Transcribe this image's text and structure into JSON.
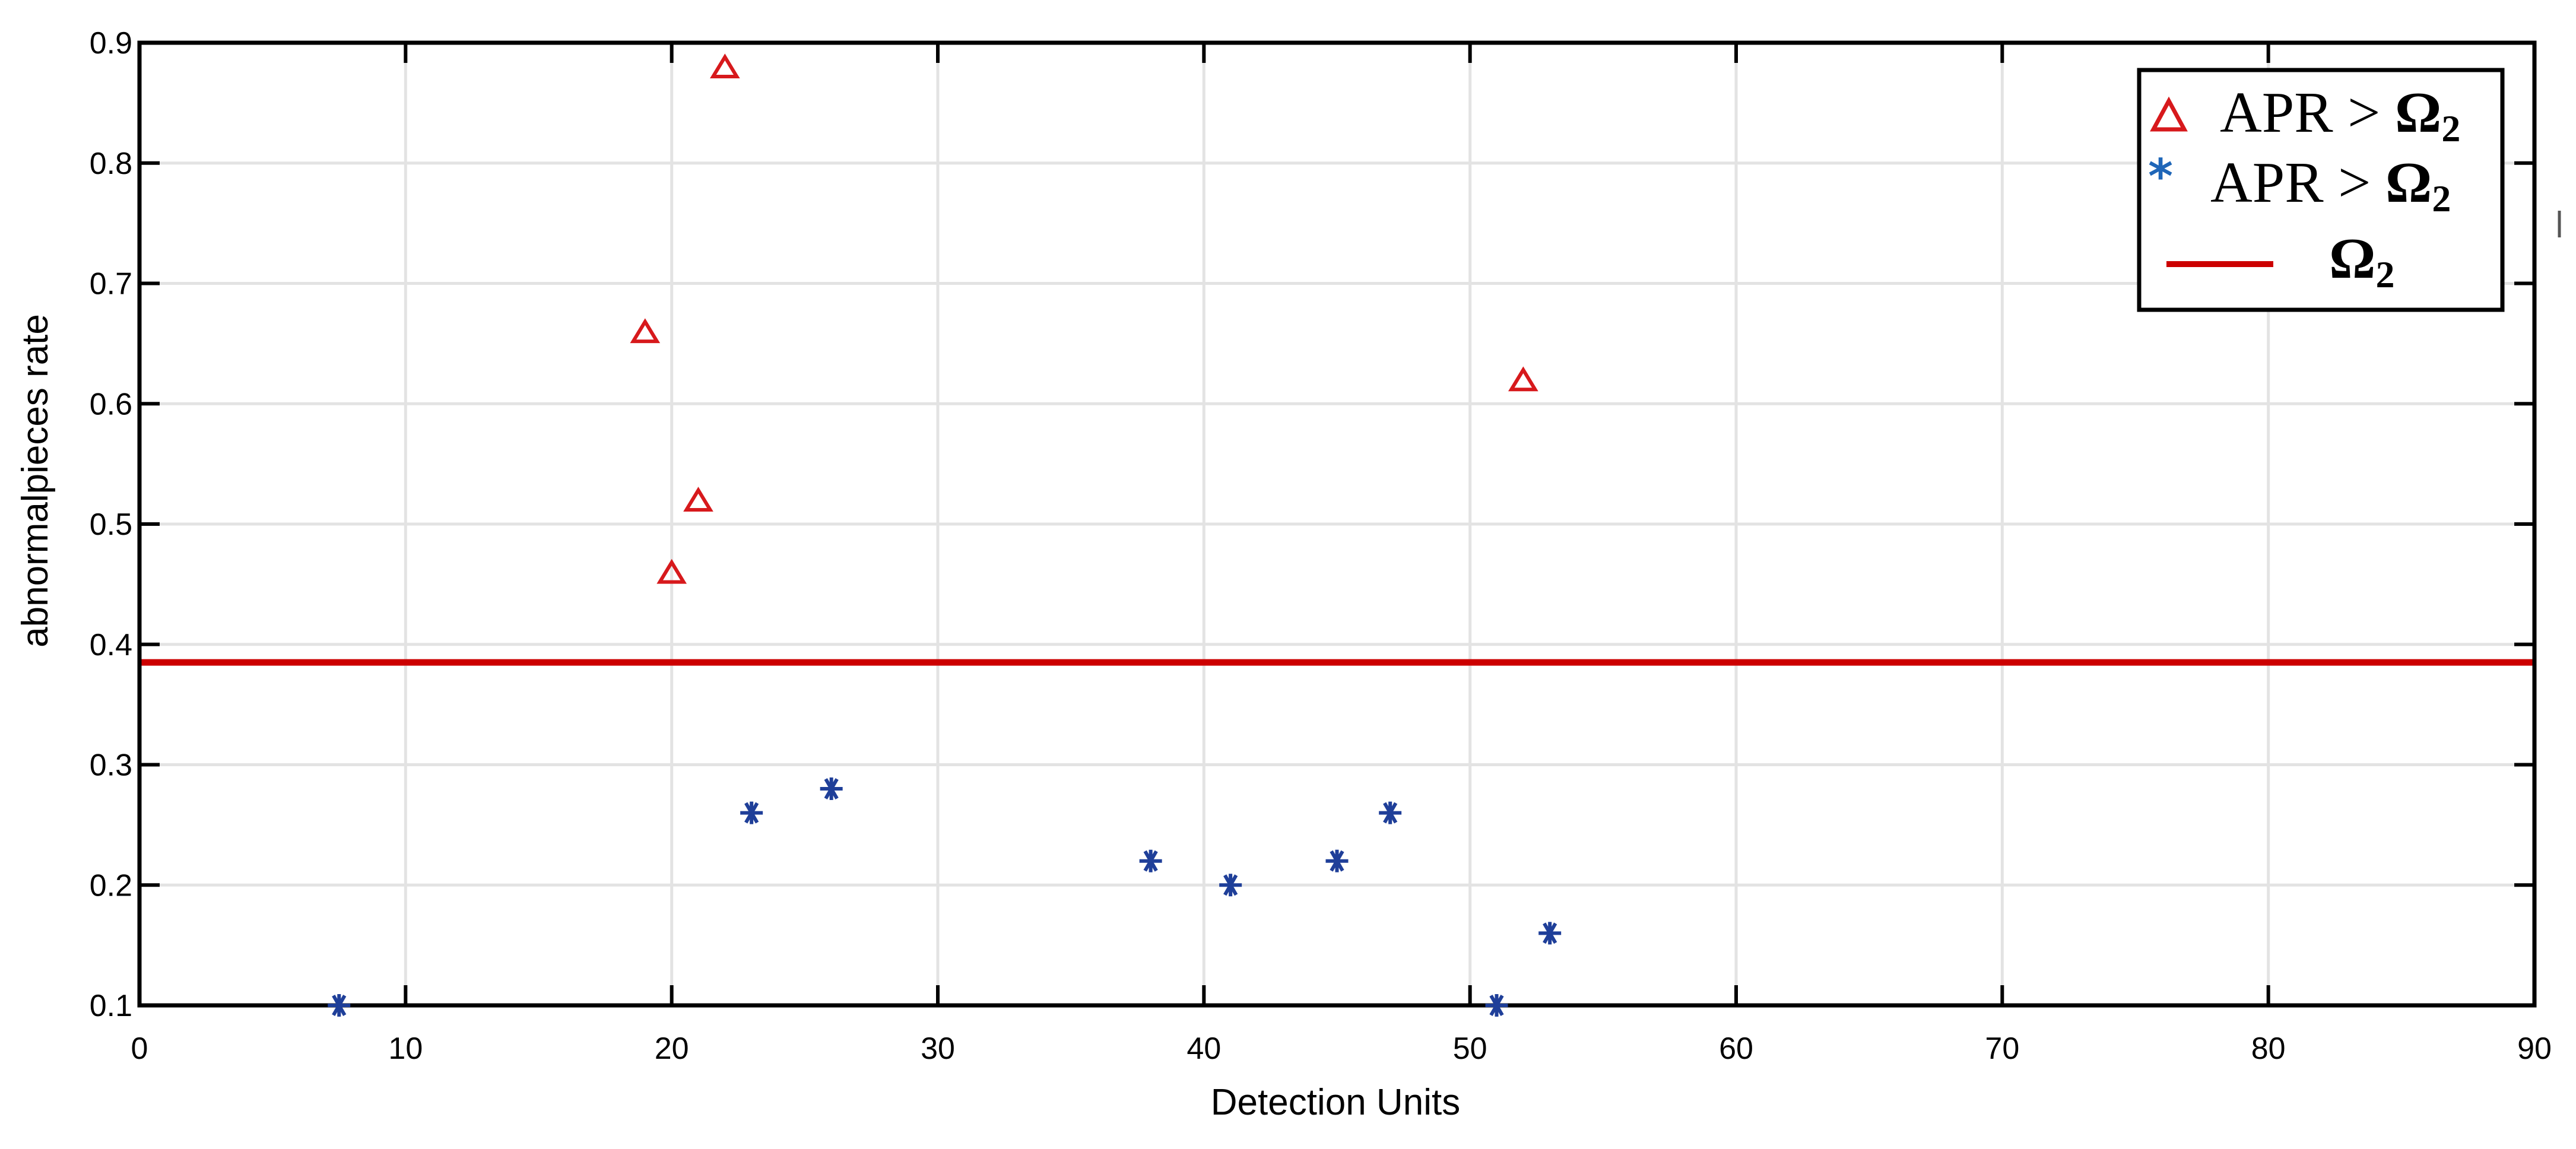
{
  "chart_data": {
    "type": "scatter",
    "title": "",
    "xlabel": "Detection Units",
    "ylabel": "abnormalpieces  rate",
    "xlim": [
      0,
      90
    ],
    "ylim": [
      0.1,
      0.9
    ],
    "xticks": [
      "0",
      "10",
      "20",
      "30",
      "40",
      "50",
      "60",
      "70",
      "80",
      "90"
    ],
    "yticks": [
      "0.1",
      "0.2",
      "0.3",
      "0.4",
      "0.5",
      "0.6",
      "0.7",
      "0.8",
      "0.9"
    ],
    "grid": true,
    "legend_position": "top-right",
    "series": [
      {
        "name": "APR > Ω2",
        "marker": "triangle",
        "color": "#d7191c",
        "points": [
          [
            22,
            0.88
          ],
          [
            19,
            0.66
          ],
          [
            21,
            0.52
          ],
          [
            20,
            0.46
          ],
          [
            52,
            0.62
          ]
        ]
      },
      {
        "name": "APR > Ω2",
        "marker": "asterisk",
        "color": "#1f3f99",
        "points": [
          [
            7.5,
            0.1
          ],
          [
            23,
            0.26
          ],
          [
            26,
            0.28
          ],
          [
            38,
            0.22
          ],
          [
            41,
            0.2
          ],
          [
            45,
            0.22
          ],
          [
            47,
            0.26
          ],
          [
            51,
            0.1
          ],
          [
            53,
            0.16
          ]
        ]
      },
      {
        "name": "Ω2",
        "type": "hline",
        "color": "#cc0000",
        "y": 0.385
      }
    ]
  },
  "legend": {
    "entries": [
      {
        "text": "APR > ",
        "symbol": "Ω",
        "sub": "2"
      },
      {
        "text": "APR > ",
        "symbol": "Ω",
        "sub": "2"
      },
      {
        "text": "",
        "symbol": "Ω",
        "sub": "2"
      }
    ]
  }
}
